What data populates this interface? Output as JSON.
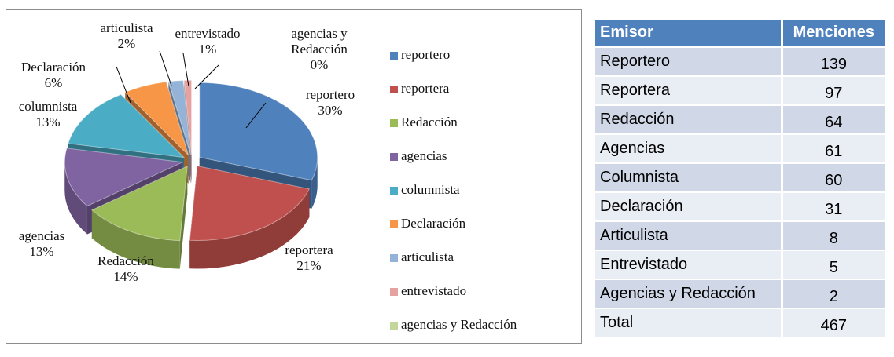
{
  "chart_data": {
    "type": "pie",
    "categories": [
      "reportero",
      "reportera",
      "Redacción",
      "agencias",
      "columnista",
      "Declaración",
      "articulista",
      "entrevistado",
      "agencias y Redacción"
    ],
    "values": [
      30,
      21,
      14,
      13,
      13,
      6,
      2,
      1,
      0
    ],
    "value_labels": [
      "30%",
      "21%",
      "14%",
      "13%",
      "13%",
      "6%",
      "2%",
      "1%",
      "0%"
    ],
    "colors": [
      "#4f81bd",
      "#c0504d",
      "#9bbb59",
      "#8064a2",
      "#4bacc6",
      "#f79646",
      "#95b3d7",
      "#e6a2a1",
      "#c3d69b"
    ],
    "legend": "right"
  },
  "table": {
    "header": [
      "Emisor",
      "Menciones"
    ],
    "rows": [
      [
        "Reportero",
        139
      ],
      [
        "Reportera",
        97
      ],
      [
        "Redacción",
        64
      ],
      [
        "Agencias",
        61
      ],
      [
        "Columnista",
        60
      ],
      [
        "Declaración",
        31
      ],
      [
        "Articulista",
        8
      ],
      [
        "Entrevistado",
        5
      ],
      [
        "Agencias y Redacción",
        2
      ],
      [
        "Total",
        467
      ]
    ]
  }
}
